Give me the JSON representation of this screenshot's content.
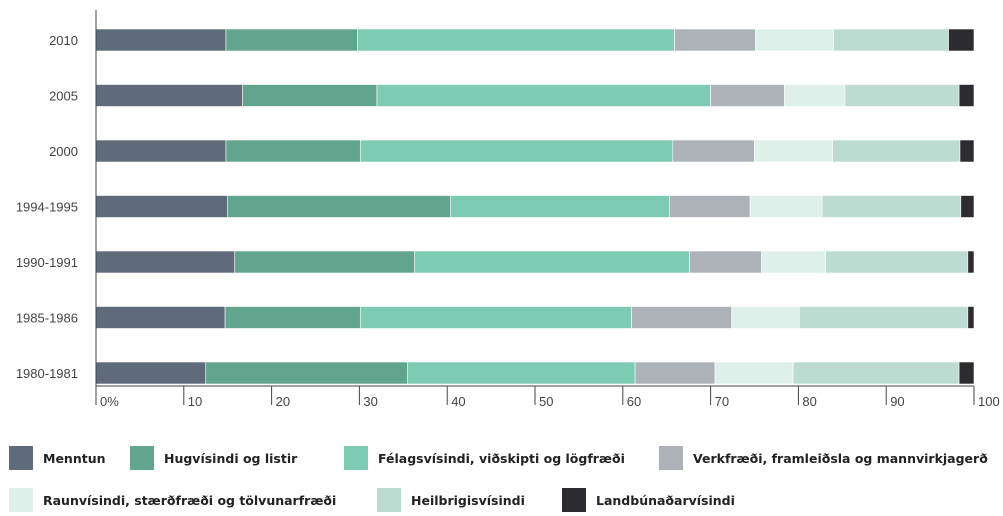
{
  "chart_data": {
    "type": "bar",
    "orientation": "horizontal",
    "stacked": true,
    "categories": [
      "2010",
      "2005",
      "2000",
      "1994-1995",
      "1990-1991",
      "1985-1986",
      "1980-1981"
    ],
    "x_ticks": [
      0,
      10,
      20,
      30,
      40,
      50,
      60,
      70,
      80,
      90,
      100
    ],
    "x_tick_labels": [
      "0%",
      "10",
      "20",
      "30",
      "40",
      "50",
      "60",
      "70",
      "80",
      "90",
      "100"
    ],
    "xlim": [
      0,
      100
    ],
    "grid": false,
    "legend_position": "bottom",
    "series": [
      {
        "name": "Menntun",
        "color": "#5f6a7a",
        "values": [
          14.8,
          16.7,
          14.8,
          15.0,
          15.8,
          14.7,
          12.5
        ]
      },
      {
        "name": "Hugvísindi og listir",
        "color": "#62a58e",
        "values": [
          15.0,
          15.3,
          15.3,
          25.4,
          20.5,
          15.4,
          23.0
        ]
      },
      {
        "name": "Félagsvísindi, viðskipti og lögfræði",
        "color": "#7ecbb3",
        "values": [
          36.1,
          38.0,
          35.6,
          24.9,
          31.3,
          30.9,
          25.9
        ]
      },
      {
        "name": "Verkfræði, framleiðsla og mannvirkjagerð",
        "color": "#adb2b9",
        "values": [
          9.2,
          8.4,
          9.3,
          9.2,
          8.2,
          11.4,
          9.1
        ]
      },
      {
        "name": "Raunvísindi, stærðfræði og tölvunarfræði",
        "color": "#dfefea",
        "values": [
          8.9,
          6.9,
          8.9,
          8.2,
          7.3,
          7.7,
          8.9
        ]
      },
      {
        "name": "Heilbrigisvísindi",
        "color": "#bcdcd2",
        "values": [
          13.1,
          13.0,
          14.5,
          15.8,
          16.2,
          19.2,
          18.9
        ]
      },
      {
        "name": "Landbúnaðarvísindi",
        "color": "#2b2b30",
        "values": [
          2.9,
          1.7,
          1.6,
          1.5,
          0.7,
          0.7,
          1.7
        ]
      }
    ]
  }
}
